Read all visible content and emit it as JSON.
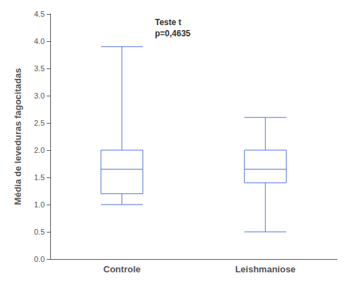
{
  "chart_data": {
    "type": "boxplot",
    "categories": [
      "Controle",
      "Leishmaniose"
    ],
    "values": [
      [
        1.0,
        1.2,
        1.65,
        2.0,
        3.9
      ],
      [
        0.5,
        1.4,
        1.65,
        2.0,
        2.6
      ]
    ],
    "ylabel": "Média de leveduras fagocitadas",
    "annotation": "Teste t\np=0,4635",
    "ylim": [
      0.0,
      4.5
    ],
    "yticks": [
      {
        "value": 0.0,
        "label": "0.0"
      },
      0.5,
      {
        "value": 1.0,
        "label": "1.0"
      },
      1.5,
      {
        "value": 2.0,
        "label": "2.0"
      },
      2.5,
      {
        "value": 3.0,
        "label": "3.0"
      },
      3.5,
      {
        "value": 4.0,
        "label": "4.0"
      },
      4.5
    ],
    "grid": false
  }
}
